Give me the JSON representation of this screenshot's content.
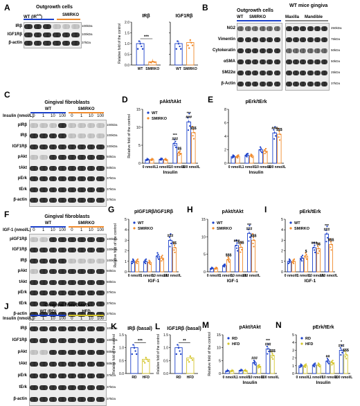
{
  "panels": {
    "A": {
      "label": "A",
      "blot_title": "Outgrowth cells",
      "group1": "WT (IR",
      "group1_sup": "fl/fl",
      "group1_end": ")",
      "group2": "SMIRKO",
      "rows": [
        "IRβ",
        "IGF1Rβ",
        "β-actin"
      ],
      "mw": [
        "100kDa",
        "100kDa",
        "37kDa"
      ]
    },
    "B": {
      "label": "B",
      "title1": "Outgrowth cells",
      "title2": "WT mice gingiva",
      "lanes": [
        "WT",
        "SMIRKO",
        "Maxilla",
        "Mandible"
      ],
      "rows": [
        "NG2",
        "Vimentin",
        "Cytokeratin",
        "αSMA",
        "SM22α",
        "β-Actin"
      ],
      "mw": [
        "250kDa",
        "75kDa",
        "50kDa",
        "50kDa",
        "25kDa",
        "37kDa"
      ]
    },
    "C": {
      "label": "C",
      "title": "Gingival fibroblasts",
      "group1": "WT",
      "group2": "SMIRKO",
      "dose_label": "Insulin (nmol/L)",
      "doses": [
        "0",
        "1",
        "10",
        "100",
        "0",
        "1",
        "10",
        "100"
      ],
      "rows": [
        "pIRβ",
        "IRβ",
        "IGF1Rβ",
        "pAkt",
        "tAkt",
        "pErk",
        "tErk",
        "β-actin"
      ],
      "mw": [
        "100kDa",
        "100kDa",
        "100kDa",
        "50kDa",
        "50kDa",
        "37kDa",
        "37kDa",
        "37kDa"
      ]
    },
    "F": {
      "label": "F",
      "title": "Gingival fibroblasts",
      "group1": "WT",
      "group2": "SMIRKO",
      "dose_label": "IGF-1  (nmol/L)",
      "doses": [
        "0",
        "1",
        "10",
        "100",
        "0",
        "1",
        "10",
        "100"
      ],
      "rows": [
        "pIGF1Rβ",
        "IGF1Rβ",
        "IRβ",
        "pAkt",
        "tAkt",
        "pErk",
        "tErk",
        "β-actin"
      ],
      "mw": [
        "100kDa",
        "100kDa",
        "100kDa",
        "50kDa",
        "50kDa",
        "37kDa",
        "37kDa",
        "37kDa"
      ]
    },
    "J": {
      "label": "J",
      "title": "Gingival fibroblasts",
      "group1": "WT (RD)",
      "group2": "HFD",
      "dose_label": "Insulin (nmol/L)",
      "doses": [
        "0",
        "1",
        "10",
        "100",
        "0",
        "1",
        "10",
        "100"
      ],
      "rows": [
        "IRβ",
        "IGF1Rβ",
        "pAkt",
        "tAkt",
        "pErk",
        "tErk",
        "β-actin"
      ],
      "mw": [
        "100kDa",
        "100kDa",
        "50kDa",
        "50kDa",
        "37kDa",
        "37kDa",
        "37kDa"
      ]
    }
  },
  "chart_data": [
    {
      "id": "A1",
      "type": "bar",
      "title": "IRβ",
      "ylabel": "Relative fold of the control",
      "categories": [
        "WT",
        "SMIRKO"
      ],
      "values": [
        1.0,
        0.15
      ],
      "ylim": [
        0,
        2.0
      ],
      "yticks": [
        "0.0",
        "0.5",
        "1.0",
        "1.5",
        "2.0"
      ],
      "colors": [
        "#1a3fc9",
        "#f08a2b"
      ],
      "annotation": "***"
    },
    {
      "id": "A2",
      "type": "bar",
      "title": "IGF1Rβ",
      "categories": [
        "WT",
        "SMIRKO"
      ],
      "values": [
        1.0,
        1.05
      ],
      "ylim": [
        0,
        2.0
      ],
      "colors": [
        "#1a3fc9",
        "#f08a2b"
      ],
      "annotation": ""
    },
    {
      "id": "D",
      "label": "D",
      "type": "bar",
      "title": "pAkt/tAkt",
      "ylabel": "Relative fold of the control",
      "xlabel": "Insulin",
      "categories": [
        "0 nmol/L",
        "1 nmol/L",
        "10 nmol/L",
        "100 nmol/L"
      ],
      "series": [
        {
          "name": "WT",
          "values": [
            1.0,
            1.1,
            5.5,
            11.5
          ]
        },
        {
          "name": "SMIRKO",
          "values": [
            1.0,
            1.0,
            2.8,
            8.5
          ]
        }
      ],
      "ylim": [
        0,
        15
      ],
      "yticks": [
        "0",
        "5",
        "10",
        "15"
      ],
      "annotations": [
        [
          "",
          "",
          "***\n###",
          "***\n###"
        ],
        [
          "",
          "",
          "$$",
          "$$$"
        ]
      ]
    },
    {
      "id": "E",
      "label": "E",
      "type": "bar",
      "title": "pErk/tErk",
      "xlabel": "Insulin",
      "categories": [
        "0 nmol/L",
        "1 nmol/L",
        "10 nmol/L",
        "100 nmol/L"
      ],
      "series": [
        {
          "name": "WT",
          "values": [
            1.0,
            1.2,
            2.0,
            4.5
          ]
        },
        {
          "name": "SMIRKO",
          "values": [
            1.0,
            1.1,
            1.8,
            4.3
          ]
        }
      ],
      "ylim": [
        0,
        8
      ],
      "yticks": [
        "0",
        "2",
        "4",
        "6",
        "8"
      ],
      "annotations": [
        [
          "",
          "",
          "",
          "###"
        ],
        [
          "",
          "",
          "",
          "$$$"
        ]
      ]
    },
    {
      "id": "G",
      "label": "G",
      "type": "bar",
      "title": "pIGF1Rβ/IGF1Rβ",
      "ylabel": "Relative fold of the control",
      "xlabel": "IGF-1",
      "categories": [
        "0 nmol/L",
        "1 nmol/L",
        "10 nmol/L",
        "100 nmol/L"
      ],
      "series": [
        {
          "name": "WT",
          "values": [
            1.0,
            1.0,
            1.5,
            3.0
          ]
        },
        {
          "name": "SMIRKO",
          "values": [
            1.0,
            0.9,
            1.3,
            2.3
          ]
        }
      ],
      "ylim": [
        0,
        5
      ],
      "yticks": [
        "0",
        "1",
        "2",
        "3",
        "4",
        "5"
      ],
      "annotations": [
        [
          "",
          "",
          "",
          "###"
        ],
        [
          "",
          "",
          "",
          "$$"
        ]
      ]
    },
    {
      "id": "H",
      "label": "H",
      "type": "bar",
      "title": "pAkt/tAkt",
      "xlabel": "IGF-1",
      "categories": [
        "0 nmol/L",
        "1 nmol/L",
        "10 nmol/L",
        "100 nmol/L"
      ],
      "series": [
        {
          "name": "WT",
          "values": [
            1.0,
            1.8,
            7.5,
            11.0
          ]
        },
        {
          "name": "SMIRKO",
          "values": [
            1.0,
            3.5,
            7.0,
            9.0
          ]
        }
      ],
      "ylim": [
        0,
        15
      ],
      "yticks": [
        "0",
        "5",
        "10",
        "15"
      ],
      "annotations": [
        [
          "",
          "",
          "###",
          "***\n###"
        ],
        [
          "",
          "$$$",
          "$$$",
          "$$$"
        ]
      ]
    },
    {
      "id": "I",
      "label": "I",
      "type": "bar",
      "title": "pErk/tErk",
      "xlabel": "IGF-1",
      "categories": [
        "0 nmol/L",
        "1 nmol/L",
        "10 nmol/L",
        "100 nmol/L"
      ],
      "series": [
        {
          "name": "WT",
          "values": [
            1.0,
            1.3,
            2.3,
            3.6
          ]
        },
        {
          "name": "SMIRKO",
          "values": [
            1.0,
            1.5,
            2.2,
            2.6
          ]
        }
      ],
      "ylim": [
        0,
        5
      ],
      "yticks": [
        "0",
        "1",
        "2",
        "3",
        "4",
        "5"
      ],
      "annotations": [
        [
          "",
          "",
          "###",
          "***\n###"
        ],
        [
          "",
          "$",
          "$$",
          "$$$"
        ]
      ]
    },
    {
      "id": "K",
      "label": "K",
      "type": "bar",
      "title": "IRβ (basal)",
      "ylabel": "Relative fold of the control",
      "categories": [
        "RD",
        "HFD"
      ],
      "values": [
        1.0,
        0.55
      ],
      "ylim": [
        0,
        1.5
      ],
      "yticks": [
        "0.0",
        "0.5",
        "1.0",
        "1.5"
      ],
      "colors": [
        "#1a3fc9",
        "#d4c52b"
      ],
      "annotation": "***"
    },
    {
      "id": "L",
      "label": "L",
      "type": "bar",
      "title": "IGF1Rβ (basal)",
      "ylabel": "Relative fold of the control",
      "categories": [
        "RD",
        "HFD"
      ],
      "values": [
        1.0,
        0.6
      ],
      "ylim": [
        0,
        1.5
      ],
      "yticks": [
        "0.0",
        "0.5",
        "1.0",
        "1.5"
      ],
      "colors": [
        "#1a3fc9",
        "#d4c52b"
      ],
      "annotation": "**"
    },
    {
      "id": "M",
      "label": "M",
      "type": "bar",
      "title": "pAkt/tAkt",
      "ylabel": "Relative fold of the control",
      "xlabel": "Insulin",
      "categories": [
        "0 nmol/L",
        "1 nmol/L",
        "10 nmol/L",
        "100 nmol/L"
      ],
      "series": [
        {
          "name": "RD",
          "values": [
            1.0,
            1.2,
            4.2,
            9.5
          ]
        },
        {
          "name": "HFD",
          "values": [
            1.0,
            1.1,
            2.8,
            7.0
          ]
        }
      ],
      "ylim": [
        0,
        15
      ],
      "yticks": [
        "0",
        "5",
        "10",
        "15"
      ],
      "annotations": [
        [
          "",
          "",
          "###",
          "***\n###"
        ],
        [
          "",
          "",
          "",
          "$$$"
        ]
      ]
    },
    {
      "id": "N",
      "label": "N",
      "type": "bar",
      "title": "pErk/tErk",
      "xlabel": "Insulin",
      "categories": [
        "0 nmol/L",
        "1 nmol/L",
        "10 nmol/L",
        "100 nmol/L"
      ],
      "series": [
        {
          "name": "RD",
          "values": [
            1.0,
            1.1,
            1.6,
            3.0
          ]
        },
        {
          "name": "HFD",
          "values": [
            1.0,
            1.1,
            1.4,
            2.4
          ]
        }
      ],
      "ylim": [
        0,
        5
      ],
      "yticks": [
        "0",
        "1",
        "2",
        "3",
        "4",
        "5"
      ],
      "annotations": [
        [
          "",
          "",
          "##",
          "*\n###"
        ],
        [
          "",
          "",
          "",
          "$$$"
        ]
      ]
    }
  ],
  "colors": {
    "wt": "#1a3fc9",
    "smirko": "#f08a2b",
    "hfd": "#d4c52b"
  }
}
